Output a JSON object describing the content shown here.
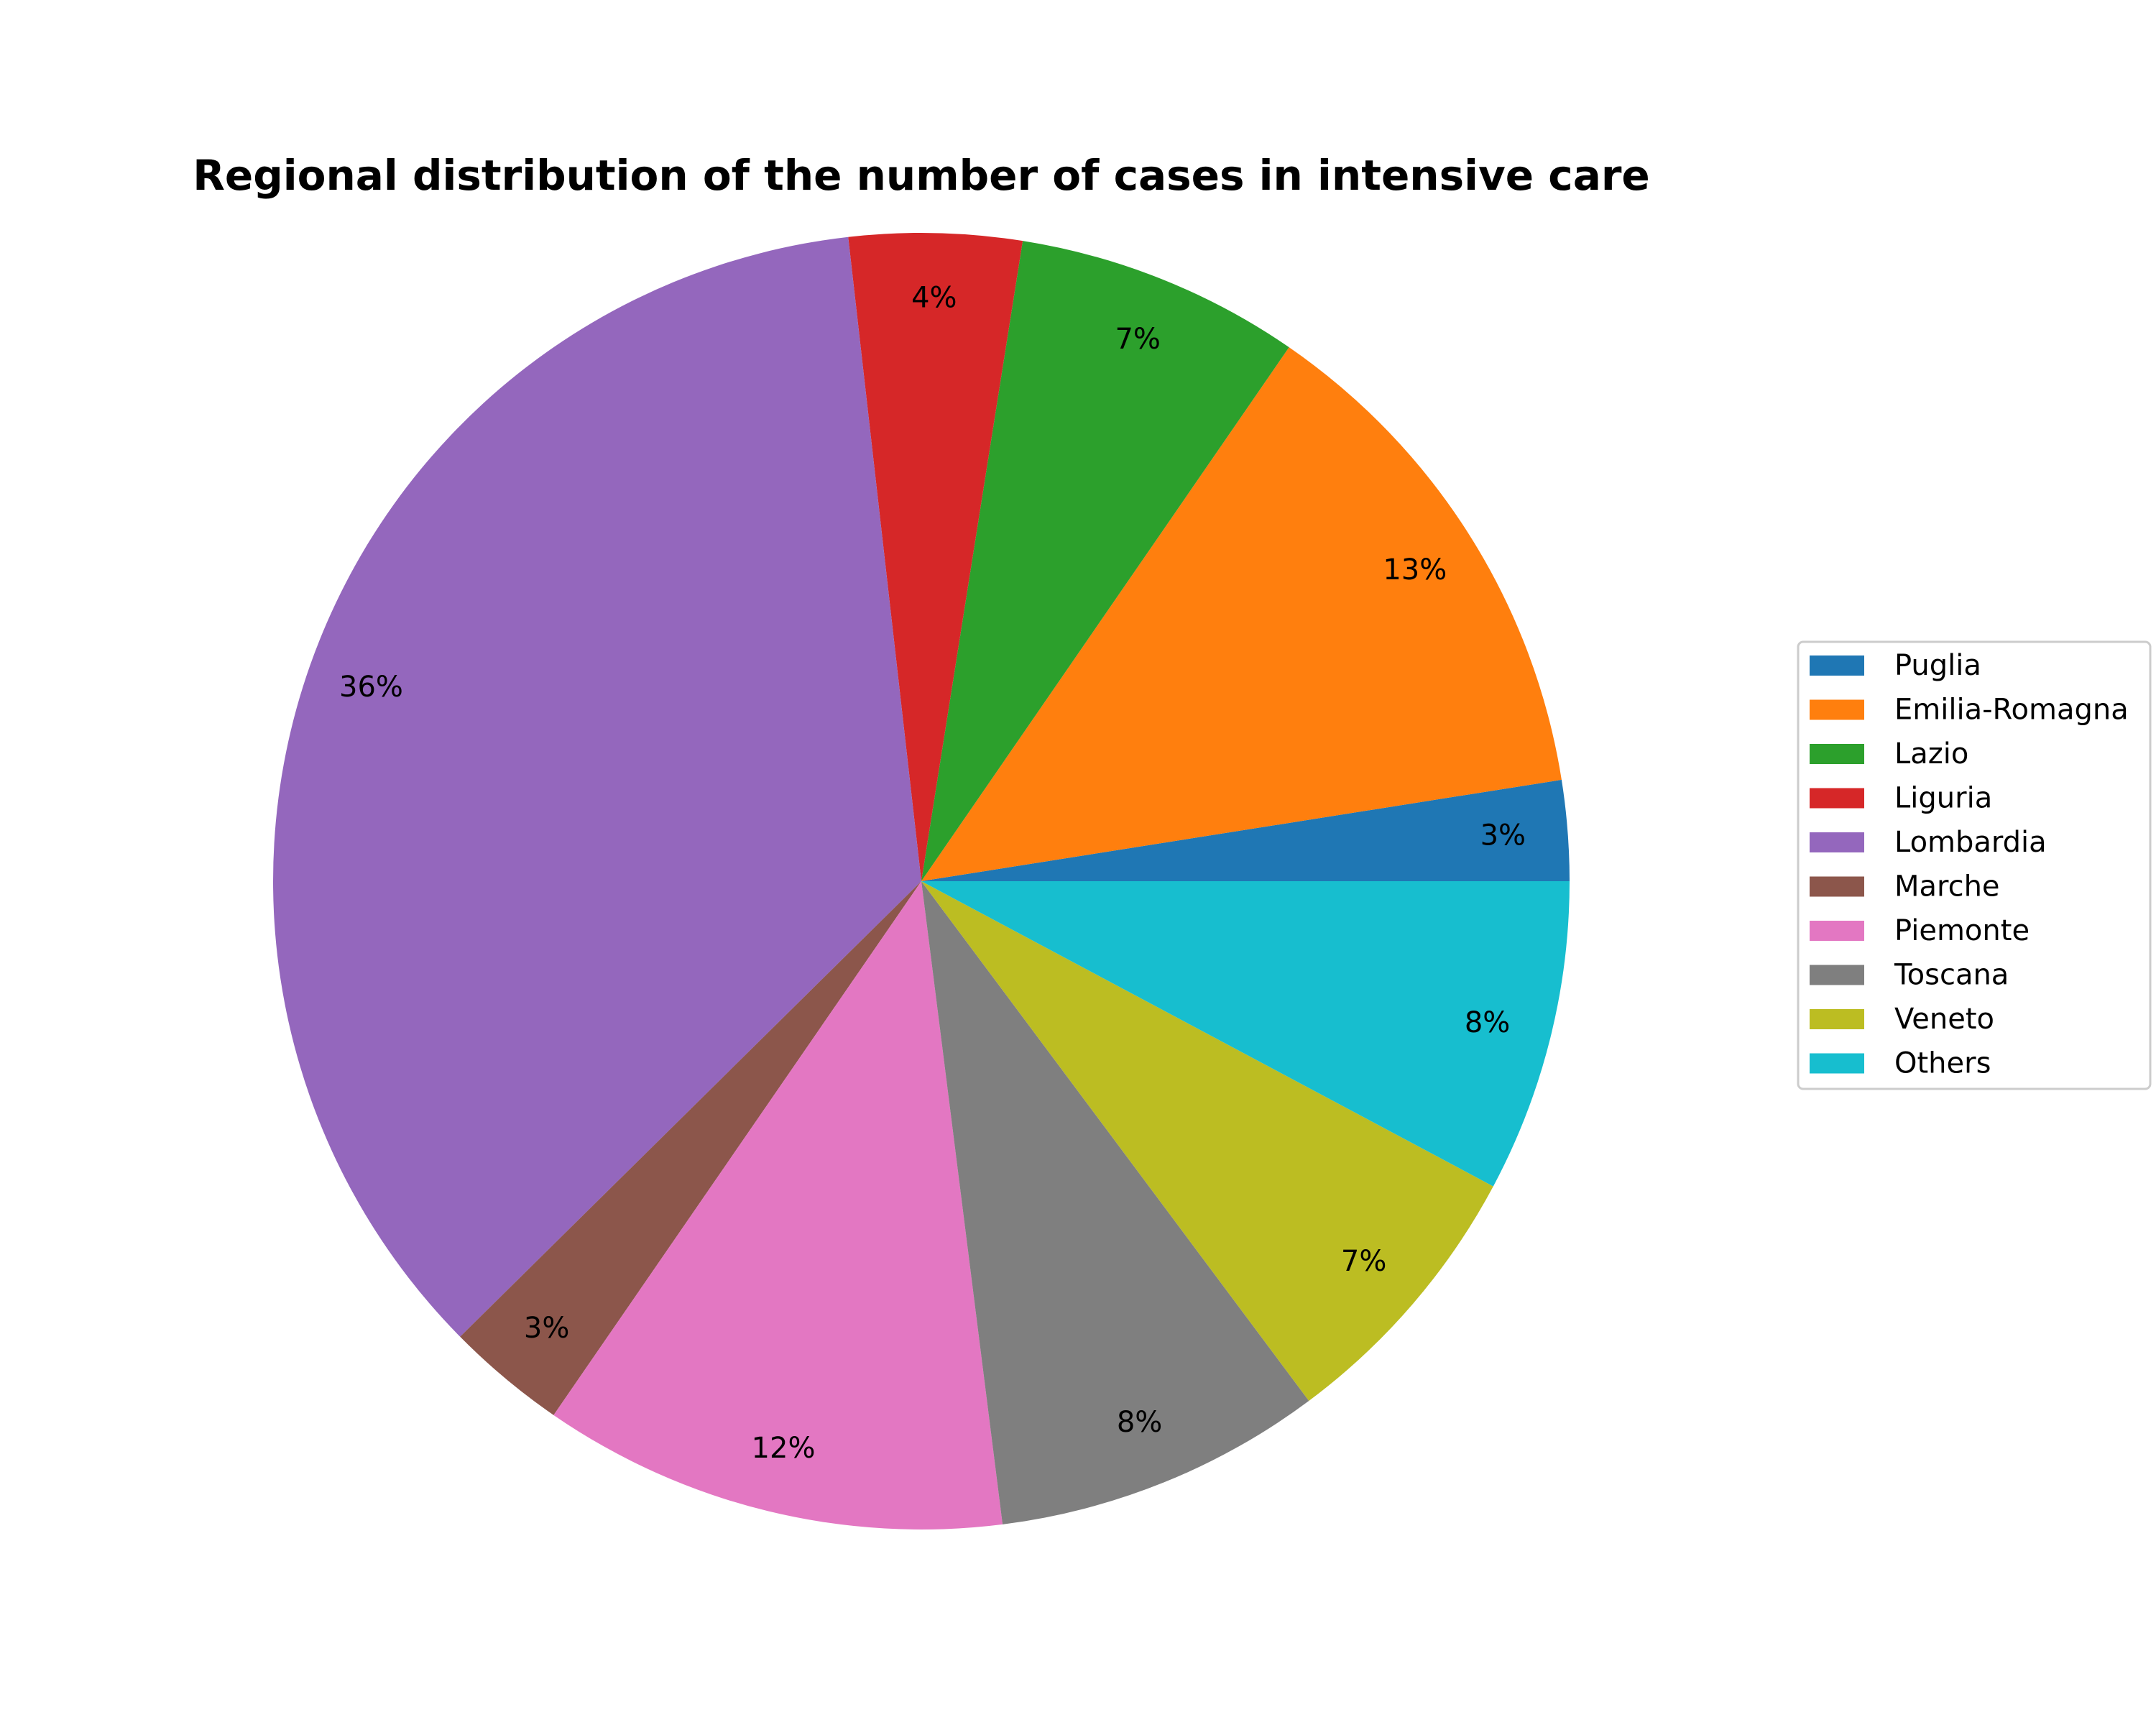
{
  "chart_data": {
    "type": "pie",
    "title": "Regional distribution of the number of cases in intensive care",
    "start_angle_deg": 0,
    "direction": "counterclockwise",
    "legend_position": "right",
    "slices": [
      {
        "label": "Puglia",
        "value": 2.5,
        "display": "3%",
        "color": "#1f77b4"
      },
      {
        "label": "Emilia-Romagna",
        "value": 12.9,
        "display": "13%",
        "color": "#ff7f0e"
      },
      {
        "label": "Lazio",
        "value": 7.1,
        "display": "7%",
        "color": "#2ca02c"
      },
      {
        "label": "Liguria",
        "value": 4.3,
        "display": "4%",
        "color": "#d62728"
      },
      {
        "label": "Lombardia",
        "value": 35.6,
        "display": "36%",
        "color": "#9467bd"
      },
      {
        "label": "Marche",
        "value": 3.0,
        "display": "3%",
        "color": "#8c564b"
      },
      {
        "label": "Piemonte",
        "value": 11.6,
        "display": "12%",
        "color": "#e377c2"
      },
      {
        "label": "Toscana",
        "value": 8.2,
        "display": "8%",
        "color": "#7f7f7f"
      },
      {
        "label": "Veneto",
        "value": 7.0,
        "display": "7%",
        "color": "#bcbd22"
      },
      {
        "label": "Others",
        "value": 7.8,
        "display": "8%",
        "color": "#17becf"
      }
    ]
  }
}
